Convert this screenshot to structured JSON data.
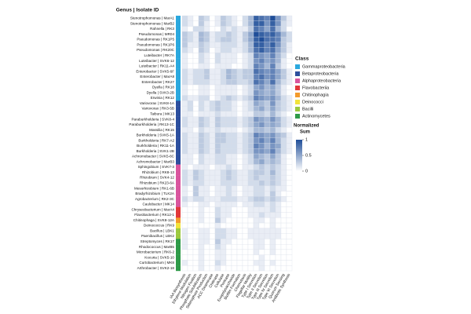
{
  "chart_data": {
    "type": "heatmap",
    "row_title": "Genus | Isolate ID",
    "rows": [
      "Stenotrophomonas | MarA1",
      "Stenotrophomonas | MarB2",
      "Rahnella | RK3",
      "Pseudomonas | MR04",
      "Pseudomonas | RK1P5",
      "Pseudomonas | RK1P6",
      "Pseudomonas | RK20C",
      "Luteibacter | RK7A",
      "Luteibacter | SVK6-12",
      "Luteibacter | RK11-A4",
      "Enterobacter | SVK5-6F",
      "Enterobacter | MarA8",
      "Enterobacter | RK27",
      "Dyella | RK18",
      "Dyella | SVK3-2B",
      "Erwinia | RK12",
      "Variovorax | SVK8-1A",
      "Variovorax | RK3-5B",
      "Taibura | MK13",
      "Paraburkholderia | SVK8-4",
      "Paraburkholderia | RK13-1C",
      "Massilia | RK15",
      "Burkholderia | SVK5-1A",
      "Burkholderia | RK7-A2",
      "Burkholderia | RK11-1A",
      "Burkholderia | SVK1-2B",
      "Achromobacter | SVK5-8C",
      "Achromobacter | MarB3",
      "Sphingobium | SVK7-3",
      "Rhizobium | RK8-13",
      "Rhizobium | SVK4-12",
      "Rhizobium | RK23-6A",
      "Mesorhizobium | RK1-6B",
      "Bradyrhizobium | TLK2A",
      "Agrobacterium | RK2-3C",
      "Caulobacter | MK14",
      "Chryseobacterium | MarA4",
      "Flavobacterium | RK12-1",
      "Chitinophaga | SVK8-12A",
      "Deinococcus | RK9",
      "Bacillus | LBK1",
      "Paenibacillus | LBK2",
      "Streptomyces | RK17",
      "Rhodococcus | MarB5",
      "Microbacterium | RK6-2",
      "Kocuria | SVK5-10",
      "Curtobacterium | MK8",
      "Arthrobacter | SVK2-18"
    ],
    "row_class": [
      "Gammaproteobacteria",
      "Gammaproteobacteria",
      "Gammaproteobacteria",
      "Gammaproteobacteria",
      "Gammaproteobacteria",
      "Gammaproteobacteria",
      "Gammaproteobacteria",
      "Gammaproteobacteria",
      "Gammaproteobacteria",
      "Gammaproteobacteria",
      "Gammaproteobacteria",
      "Gammaproteobacteria",
      "Gammaproteobacteria",
      "Gammaproteobacteria",
      "Gammaproteobacteria",
      "Gammaproteobacteria",
      "Betaproteobacteria",
      "Betaproteobacteria",
      "Betaproteobacteria",
      "Betaproteobacteria",
      "Betaproteobacteria",
      "Betaproteobacteria",
      "Betaproteobacteria",
      "Betaproteobacteria",
      "Betaproteobacteria",
      "Betaproteobacteria",
      "Betaproteobacteria",
      "Betaproteobacteria",
      "Alphaproteobacteria",
      "Alphaproteobacteria",
      "Alphaproteobacteria",
      "Alphaproteobacteria",
      "Alphaproteobacteria",
      "Alphaproteobacteria",
      "Alphaproteobacteria",
      "Alphaproteobacteria",
      "Flavobacteriia",
      "Flavobacteriia",
      "Chitinophagia",
      "Deinococci",
      "Bacilli",
      "Bacilli",
      "Actinomycetes",
      "Actinomycetes",
      "Actinomycetes",
      "Actinomycetes",
      "Actinomycetes",
      "Actinomycetes"
    ],
    "columns": [
      "IAA Biosynthesis",
      "Ethylene Modulation",
      "Nitrogen Fixation",
      "Phosphate Solubilization",
      "Siderophore Production",
      "ACC Deaminase",
      "Chitinase",
      "Cellulase",
      "Protease",
      "Exopolysaccharide",
      "Biofilm Formation",
      "Chemotaxis",
      "Flagellar Motility",
      "Type I Secretion",
      "Type II Secretion",
      "Type III Secretion",
      "Type IV Secretion",
      "Type VI Secretion",
      "Quorum Sensing",
      "Antibiotic Synthesis"
    ],
    "values": [
      [
        0.2,
        0.1,
        0,
        0.3,
        0.2,
        0,
        0.1,
        0.3,
        0.2,
        0.1,
        0,
        0.2,
        0.4,
        0.9,
        0.8,
        0.7,
        1,
        0.6,
        0.3,
        0.1
      ],
      [
        0.2,
        0.1,
        0,
        0.3,
        0.1,
        0,
        0.1,
        0.3,
        0.2,
        0.1,
        0,
        0.2,
        0.4,
        0.9,
        0.9,
        0.6,
        0.9,
        0.6,
        0.2,
        0.1
      ],
      [
        0.1,
        0,
        0.2,
        0.2,
        0.1,
        0,
        0,
        0.2,
        0.1,
        0.2,
        0.1,
        0.1,
        0.3,
        0.8,
        0.7,
        0.5,
        0.8,
        0.4,
        0.2,
        0
      ],
      [
        0.3,
        0.2,
        0.1,
        0.4,
        0.3,
        0.1,
        0.2,
        0.2,
        0.3,
        0.2,
        0.1,
        0.3,
        0.5,
        1,
        0.9,
        0.8,
        0.9,
        0.7,
        0.4,
        0.2
      ],
      [
        0.3,
        0.2,
        0.1,
        0.4,
        0.3,
        0.1,
        0.2,
        0.3,
        0.3,
        0.2,
        0.1,
        0.3,
        0.5,
        0.9,
        1,
        0.8,
        0.8,
        0.7,
        0.3,
        0.2
      ],
      [
        0.3,
        0.1,
        0.1,
        0.3,
        0.2,
        0.1,
        0.1,
        0.2,
        0.2,
        0.2,
        0.1,
        0.2,
        0.4,
        0.9,
        0.9,
        0.7,
        0.9,
        0.6,
        0.3,
        0.1
      ],
      [
        0.2,
        0.1,
        0,
        0.3,
        0.2,
        0,
        0.1,
        0.2,
        0.2,
        0.1,
        0.1,
        0.2,
        0.4,
        0.8,
        0.9,
        0.7,
        0.8,
        0.5,
        0.3,
        0.1
      ],
      [
        0.1,
        0,
        0,
        0.2,
        0.1,
        0,
        0.2,
        0.1,
        0.1,
        0.1,
        0,
        0.1,
        0.2,
        0.7,
        0.6,
        0.5,
        0.7,
        0.4,
        0.2,
        0
      ],
      [
        0.1,
        0,
        0,
        0.2,
        0.1,
        0,
        0.2,
        0.1,
        0.1,
        0.1,
        0,
        0.1,
        0.2,
        0.6,
        0.7,
        0.5,
        0.6,
        0.4,
        0.1,
        0
      ],
      [
        0.1,
        0,
        0,
        0.1,
        0.1,
        0,
        0.1,
        0.1,
        0.1,
        0,
        0,
        0.1,
        0.2,
        0.7,
        0.6,
        0.4,
        0.7,
        0.3,
        0.1,
        0
      ],
      [
        0.2,
        0.1,
        0.2,
        0.2,
        0.3,
        0.1,
        0.1,
        0.2,
        0.4,
        0.3,
        0.2,
        0.3,
        0.3,
        0.8,
        0.7,
        0.6,
        0.7,
        0.5,
        0.3,
        0.1
      ],
      [
        0.2,
        0.1,
        0.2,
        0.2,
        0.3,
        0.1,
        0.1,
        0.2,
        0.4,
        0.3,
        0.2,
        0.3,
        0.3,
        0.7,
        0.8,
        0.6,
        0.7,
        0.5,
        0.3,
        0.1
      ],
      [
        0.2,
        0.1,
        0.2,
        0.2,
        0.2,
        0.1,
        0.1,
        0.2,
        0.3,
        0.3,
        0.2,
        0.2,
        0.3,
        0.8,
        0.7,
        0.5,
        0.8,
        0.4,
        0.2,
        0.1
      ],
      [
        0.1,
        0,
        0,
        0.1,
        0.1,
        0,
        0.1,
        0.1,
        0.1,
        0.1,
        0,
        0.1,
        0.2,
        0.5,
        0.6,
        0.4,
        0.5,
        0.3,
        0.1,
        0
      ],
      [
        0.1,
        0,
        0,
        0.1,
        0.1,
        0,
        0.1,
        0.1,
        0.1,
        0.1,
        0,
        0.1,
        0.2,
        0.6,
        0.5,
        0.4,
        0.5,
        0.3,
        0.1,
        0
      ],
      [
        0.2,
        0.1,
        0.1,
        0.2,
        0.2,
        0,
        0.1,
        0.2,
        0.3,
        0.2,
        0.1,
        0.2,
        0.3,
        0.7,
        0.6,
        0.5,
        0.6,
        0.4,
        0.2,
        0.1
      ],
      [
        0.1,
        0.2,
        0,
        0.2,
        0.1,
        0.2,
        0.3,
        0.2,
        0.2,
        0.1,
        0,
        0.1,
        0.2,
        0.5,
        0.4,
        0.3,
        0.6,
        0.3,
        0.2,
        0.1
      ],
      [
        0.1,
        0.2,
        0,
        0.2,
        0.1,
        0.2,
        0.3,
        0.2,
        0.2,
        0.1,
        0,
        0.1,
        0.2,
        0.4,
        0.5,
        0.3,
        0.5,
        0.3,
        0.2,
        0.1
      ],
      [
        0.1,
        0.1,
        0,
        0.1,
        0.1,
        0.1,
        0.2,
        0.1,
        0.1,
        0.1,
        0,
        0.1,
        0.1,
        0.3,
        0.3,
        0.2,
        0.4,
        0.2,
        0.1,
        0
      ],
      [
        0.2,
        0.1,
        0.1,
        0.3,
        0.2,
        0.1,
        0.3,
        0.2,
        0.2,
        0.2,
        0.1,
        0.2,
        0.3,
        0.6,
        0.5,
        0.4,
        0.6,
        0.4,
        0.2,
        0.1
      ],
      [
        0.2,
        0.1,
        0.1,
        0.3,
        0.2,
        0.1,
        0.3,
        0.2,
        0.2,
        0.2,
        0.1,
        0.2,
        0.3,
        0.5,
        0.6,
        0.4,
        0.5,
        0.4,
        0.2,
        0.1
      ],
      [
        0.1,
        0.1,
        0,
        0.2,
        0.1,
        0.1,
        0.2,
        0.1,
        0.1,
        0.1,
        0,
        0.1,
        0.2,
        0.4,
        0.4,
        0.3,
        0.4,
        0.2,
        0.1,
        0
      ],
      [
        0.2,
        0.1,
        0.1,
        0.3,
        0.2,
        0.1,
        0.3,
        0.3,
        0.2,
        0.2,
        0.1,
        0.2,
        0.3,
        0.7,
        0.6,
        0.5,
        0.6,
        0.4,
        0.3,
        0.1
      ],
      [
        0.2,
        0.1,
        0.1,
        0.3,
        0.2,
        0.1,
        0.3,
        0.3,
        0.2,
        0.2,
        0.1,
        0.2,
        0.3,
        0.6,
        0.7,
        0.5,
        0.7,
        0.4,
        0.2,
        0.1
      ],
      [
        0.2,
        0.1,
        0.1,
        0.3,
        0.2,
        0.1,
        0.3,
        0.2,
        0.2,
        0.2,
        0.1,
        0.2,
        0.3,
        0.7,
        0.6,
        0.4,
        0.6,
        0.5,
        0.2,
        0.1
      ],
      [
        0.2,
        0.1,
        0.1,
        0.3,
        0.2,
        0.1,
        0.3,
        0.2,
        0.2,
        0.2,
        0.1,
        0.2,
        0.3,
        0.6,
        0.6,
        0.5,
        0.7,
        0.4,
        0.2,
        0.1
      ],
      [
        0.1,
        0.1,
        0,
        0.2,
        0.1,
        0.1,
        0.2,
        0.2,
        0.1,
        0.1,
        0,
        0.1,
        0.2,
        0.5,
        0.4,
        0.3,
        0.5,
        0.3,
        0.1,
        0
      ],
      [
        0.1,
        0.1,
        0,
        0.2,
        0.1,
        0.1,
        0.2,
        0.2,
        0.1,
        0.1,
        0,
        0.1,
        0.2,
        0.4,
        0.5,
        0.3,
        0.4,
        0.3,
        0.1,
        0
      ],
      [
        0.1,
        0,
        0.1,
        0.1,
        0.1,
        0,
        0.1,
        0.1,
        0.2,
        0.1,
        0,
        0.1,
        0.1,
        0.2,
        0.3,
        0.2,
        0.3,
        0.2,
        0.1,
        0
      ],
      [
        0.2,
        0.1,
        0.3,
        0.2,
        0.1,
        0.1,
        0.1,
        0.2,
        0.3,
        0.2,
        0.1,
        0.1,
        0.2,
        0.3,
        0.3,
        0.2,
        0.4,
        0.2,
        0.1,
        0
      ],
      [
        0.2,
        0.1,
        0.3,
        0.2,
        0.1,
        0.1,
        0.1,
        0.2,
        0.3,
        0.2,
        0.1,
        0.1,
        0.2,
        0.3,
        0.2,
        0.2,
        0.3,
        0.2,
        0.1,
        0
      ],
      [
        0.2,
        0.1,
        0.2,
        0.2,
        0.1,
        0.1,
        0.1,
        0.2,
        0.2,
        0.2,
        0.1,
        0.1,
        0.2,
        0.2,
        0.3,
        0.2,
        0.3,
        0.2,
        0.1,
        0
      ],
      [
        0.1,
        0,
        0.3,
        0.1,
        0.1,
        0,
        0.1,
        0.1,
        0.2,
        0.1,
        0,
        0.1,
        0.1,
        0.2,
        0.2,
        0.1,
        0.2,
        0.1,
        0.1,
        0
      ],
      [
        0.1,
        0,
        0.3,
        0.1,
        0.1,
        0,
        0.1,
        0.1,
        0.2,
        0.1,
        0,
        0.1,
        0.1,
        0.2,
        0.2,
        0.1,
        0.3,
        0.1,
        0,
        0
      ],
      [
        0.2,
        0.1,
        0.2,
        0.2,
        0.1,
        0.1,
        0.1,
        0.2,
        0.2,
        0.2,
        0.1,
        0.1,
        0.2,
        0.3,
        0.3,
        0.2,
        0.3,
        0.2,
        0.1,
        0
      ],
      [
        0.1,
        0,
        0,
        0.1,
        0.1,
        0,
        0.1,
        0.1,
        0.1,
        0.1,
        0,
        0.1,
        0.1,
        0.2,
        0.2,
        0.1,
        0.2,
        0.1,
        0,
        0
      ],
      [
        0,
        0,
        0,
        0.1,
        0,
        0,
        0.2,
        0.1,
        0.1,
        0,
        0,
        0,
        0.1,
        0.1,
        0.1,
        0.1,
        0.2,
        0.1,
        0,
        0
      ],
      [
        0,
        0,
        0,
        0.1,
        0,
        0,
        0.2,
        0.1,
        0.1,
        0,
        0,
        0,
        0.1,
        0.1,
        0.2,
        0.1,
        0.1,
        0.1,
        0,
        0
      ],
      [
        0,
        0,
        0,
        0.1,
        0,
        0,
        0.3,
        0.1,
        0,
        0,
        0,
        0,
        0,
        0.1,
        0.1,
        0,
        0.1,
        0,
        0,
        0
      ],
      [
        0,
        0,
        0,
        0,
        0,
        0,
        0.1,
        0,
        0,
        0,
        0,
        0,
        0,
        0.1,
        0,
        0,
        0.1,
        0,
        0,
        0
      ],
      [
        0.1,
        0,
        0,
        0.1,
        0.1,
        0,
        0.2,
        0.2,
        0.1,
        0.1,
        0,
        0,
        0.1,
        0.1,
        0.1,
        0.1,
        0.1,
        0.1,
        0,
        0
      ],
      [
        0.1,
        0,
        0,
        0.1,
        0.1,
        0,
        0.2,
        0.2,
        0.1,
        0.1,
        0,
        0,
        0.1,
        0.1,
        0.1,
        0.1,
        0.1,
        0.1,
        0,
        0
      ],
      [
        0.1,
        0,
        0,
        0.1,
        0.1,
        0,
        0.3,
        0.1,
        0.1,
        0,
        0,
        0,
        0,
        0.1,
        0.1,
        0,
        0.1,
        0,
        0,
        0
      ],
      [
        0.1,
        0,
        0,
        0.1,
        0,
        0,
        0.2,
        0.1,
        0,
        0,
        0,
        0,
        0,
        0.1,
        0.1,
        0,
        0.1,
        0,
        0,
        0
      ],
      [
        0,
        0,
        0,
        0.1,
        0,
        0,
        0.1,
        0.1,
        0,
        0,
        0,
        0,
        0,
        0.1,
        0,
        0,
        0.1,
        0,
        0,
        0
      ],
      [
        0,
        0,
        0,
        0.1,
        0,
        0,
        0.1,
        0.1,
        0,
        0,
        0,
        0,
        0,
        0,
        0.1,
        0,
        0,
        0,
        0,
        0
      ],
      [
        0.1,
        0,
        0,
        0.1,
        0,
        0,
        0.2,
        0.1,
        0,
        0,
        0,
        0,
        0,
        0.1,
        0.1,
        0,
        0.1,
        0,
        0,
        0
      ],
      [
        0,
        0,
        0,
        0.1,
        0,
        0,
        0.1,
        0,
        0,
        0,
        0,
        0,
        0,
        0,
        0.1,
        0,
        0,
        0,
        0,
        0
      ]
    ],
    "legend_title": "Class",
    "classes": [
      {
        "name": "Gammaproteobacteria",
        "color": "#2ba8de"
      },
      {
        "name": "Betaproteobacteria",
        "color": "#2c4f9e"
      },
      {
        "name": "Alphaproteobacteria",
        "color": "#d9559e"
      },
      {
        "name": "Flavobacteriia",
        "color": "#e2383a"
      },
      {
        "name": "Chitinophagia",
        "color": "#f39a2b"
      },
      {
        "name": "Deinococci",
        "color": "#f2e33a"
      },
      {
        "name": "Bacilli",
        "color": "#9cc93f"
      },
      {
        "name": "Actinomycetes",
        "color": "#2e9a48"
      }
    ],
    "colorbar_title": [
      "Normalized",
      "Sum"
    ],
    "colorbar_lim": [
      0,
      1
    ],
    "colorbar_ticks": [
      0,
      0.5,
      1
    ],
    "color_low": "#ffffff",
    "color_high": "#1f4e99"
  }
}
